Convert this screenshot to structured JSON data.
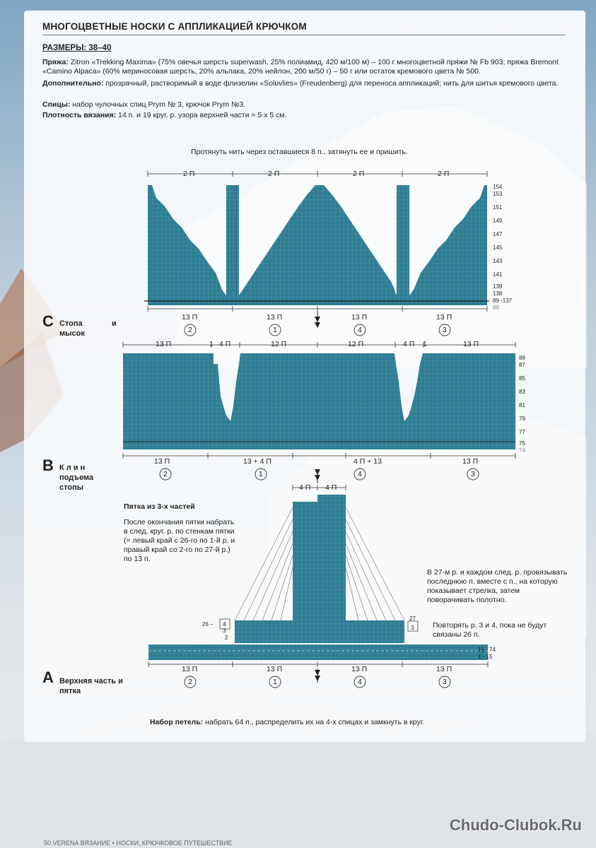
{
  "header": {
    "title": "МНОГОЦВЕТНЫЕ НОСКИ С АППЛИКАЦИЕЙ КРЮЧКОМ",
    "sizes": "РАЗМЕРЫ: 38–40"
  },
  "materials": {
    "yarn_label": "Пряжа:",
    "yarn_text": " Zitron «Trekking Maxima» (75% овечья шерсть superwash, 25% полиамид, 420 м/100 м) – 100 г многоцветной пряжи № Fb 903; пряжа Bremont «Camino Alpaca» (60% мериносовая шерсть, 20% альпака, 20% нейлон, 200 м/50 г) – 50 г или остаток кремового цвета № 500.",
    "extra_label": "Дополнительно:",
    "extra_text": " прозрачный, растворимый в воде флизелин «Soluvlies» (Freudenberg) для переноса аппликаций; нить для шитья кремового цвета.",
    "needles_label": "Спицы:",
    "needles_text": " набор чулочных спиц Prym № 3, крючок Prym №3.",
    "gauge_label": "Плотность вязания:",
    "gauge_text": " 14 п. и 19 круг. р. узора верхней части = 5 х 5 см."
  },
  "chart_c": {
    "top_note": "Протянуть нить через оставшиеся 8 п., затянуть ее и пришить.",
    "letter": "C",
    "label_line1": "Стопа",
    "label_and": "и",
    "label_line2": "мысок",
    "top_counts": [
      "2 П",
      "2 П",
      "2 П",
      "2 П"
    ],
    "bottom_counts": [
      "13 П",
      "13 П",
      "13 П",
      "13 П"
    ],
    "section_numbers": [
      "2",
      "1",
      "4",
      "3"
    ],
    "row_labels": [
      "154",
      "153",
      "151",
      "149",
      "147",
      "145",
      "143",
      "141",
      "139",
      "138",
      "89 -137",
      "88"
    ]
  },
  "chart_b": {
    "letter": "B",
    "label_line1": "К л и н",
    "label_line2": "подъема",
    "label_line3": "стопы",
    "top_counts": [
      "13 П",
      "1",
      "4 П",
      "12 П",
      "12 П",
      "4 П",
      "1",
      "13 П"
    ],
    "bottom_counts": [
      "13 П",
      "13 + 4 П",
      "4 П + 13",
      "13 П"
    ],
    "section_numbers": [
      "2",
      "1",
      "4",
      "3"
    ],
    "row_labels": [
      "88",
      "87",
      "85",
      "83",
      "81",
      "79",
      "77",
      "75",
      "74"
    ]
  },
  "chart_a": {
    "letter": "A",
    "label_line1": "Верхняя часть и",
    "label_line2": "пятка",
    "heel_counts": [
      "4 П",
      "4 П"
    ],
    "heel_title": "Пятка из 3-х частей",
    "heel_note": "После окончания пятки набрать в след. круг. р. по стенкам пятки (= левый край с 26-го по 1-й р. и правый край со 2-го по 27-й р.) по 13 п.",
    "right_note": "В 27-м р. и каждом след. р. провязывать последнюю п. вместе с п., на которую показывает стрелка, затем поворачивать полотно.",
    "repeat_note": "Повторять р. 3 и 4, пока не будут связаны 26 п.",
    "left_rows": [
      "26 –",
      "4",
      "3",
      "2"
    ],
    "right_rows": [
      "27",
      "3"
    ],
    "row_labels": [
      "16 - 74",
      "1 - 15"
    ],
    "bottom_counts": [
      "13 П",
      "13 П",
      "13 П",
      "13 П"
    ],
    "section_numbers": [
      "2",
      "1",
      "4",
      "3"
    ],
    "cast_on_label": "Набор петель:",
    "cast_on_text": " набрать 64 п., распределить их на 4-х спицах и замкнуть в круг."
  },
  "footer": {
    "page": "50",
    "magazine": "VERENA",
    "text": "ВЯЗАНИЕ • НОСКИ, КРЮЧКОВОЕ ПУТЕШЕСТВИЕ"
  },
  "watermark": "Chudo-Clubok.Ru",
  "colors": {
    "chart_fill": "#2e7d93",
    "grid": "#6aa9b9",
    "background_sky": "#7fa6c4"
  }
}
